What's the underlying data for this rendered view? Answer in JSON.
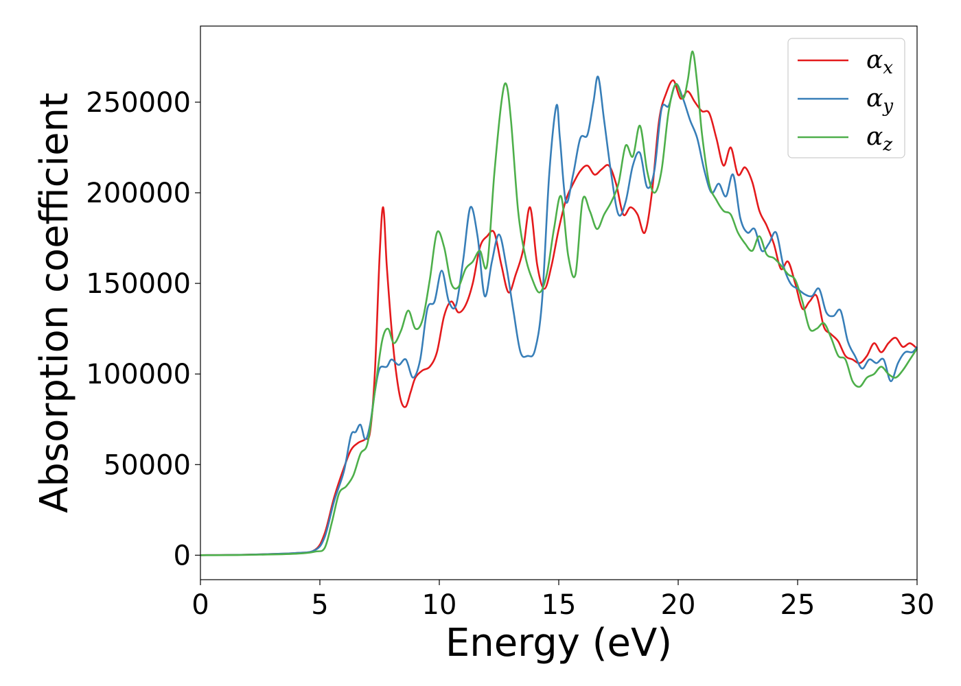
{
  "chart_data": {
    "type": "line",
    "xlabel": "Energy (eV)",
    "ylabel": "Absorption coefficient",
    "xlim": [
      0,
      30
    ],
    "ylim": [
      -13500,
      292000
    ],
    "xticks": [
      0,
      5,
      10,
      15,
      20,
      25,
      30
    ],
    "yticks": [
      0,
      50000,
      100000,
      150000,
      200000,
      250000
    ],
    "grid": false,
    "legend": "top-right",
    "series": [
      {
        "name": "α",
        "subscript": "x",
        "color": "#e41a1c",
        "x": [
          0,
          2,
          4,
          4.8,
          5.2,
          5.6,
          6,
          6.3,
          6.6,
          6.9,
          7.1,
          7.3,
          7.5,
          7.65,
          7.8,
          8,
          8.2,
          8.4,
          8.6,
          8.8,
          9,
          9.3,
          9.6,
          9.9,
          10.2,
          10.5,
          10.8,
          11.1,
          11.4,
          11.7,
          12,
          12.3,
          12.6,
          12.9,
          13.2,
          13.5,
          13.8,
          14.1,
          14.4,
          14.7,
          15,
          15.3,
          15.6,
          15.9,
          16.2,
          16.5,
          16.8,
          17.1,
          17.4,
          17.7,
          18,
          18.3,
          18.6,
          18.9,
          19.2,
          19.5,
          19.8,
          20.1,
          20.4,
          20.7,
          21,
          21.3,
          21.6,
          21.9,
          22.2,
          22.5,
          22.8,
          23.1,
          23.4,
          23.7,
          24,
          24.3,
          24.6,
          24.9,
          25.2,
          25.5,
          25.8,
          26.1,
          26.4,
          26.7,
          27,
          27.3,
          27.6,
          27.9,
          28.2,
          28.5,
          28.8,
          29.1,
          29.4,
          29.7,
          30
        ],
        "values": [
          0,
          300,
          1200,
          3000,
          12000,
          32000,
          48000,
          58000,
          62000,
          64000,
          68000,
          100000,
          165000,
          192000,
          160000,
          125000,
          100000,
          85000,
          82000,
          90000,
          98000,
          102000,
          104000,
          112000,
          132000,
          140000,
          134000,
          138000,
          150000,
          170000,
          176000,
          178000,
          160000,
          145000,
          155000,
          168000,
          192000,
          160000,
          147000,
          160000,
          180000,
          196000,
          205000,
          212000,
          215000,
          210000,
          213000,
          215000,
          205000,
          188000,
          192000,
          188000,
          178000,
          200000,
          240000,
          255000,
          262000,
          252000,
          256000,
          250000,
          245000,
          244000,
          230000,
          215000,
          225000,
          210000,
          214000,
          206000,
          190000,
          182000,
          172000,
          158000,
          162000,
          150000,
          136000,
          140000,
          143000,
          126000,
          122000,
          118000,
          110000,
          108000,
          106000,
          110000,
          117000,
          112000,
          117000,
          120000,
          115000,
          117000,
          114000
        ]
      },
      {
        "name": "α",
        "subscript": "y",
        "color": "#377eb8",
        "x": [
          0,
          2,
          4,
          4.8,
          5.2,
          5.6,
          6,
          6.3,
          6.5,
          6.7,
          6.9,
          7.1,
          7.3,
          7.5,
          7.8,
          8,
          8.3,
          8.6,
          8.9,
          9.2,
          9.5,
          9.8,
          10.1,
          10.4,
          10.7,
          11,
          11.3,
          11.6,
          11.9,
          12.2,
          12.5,
          12.8,
          13.1,
          13.4,
          13.7,
          14,
          14.3,
          14.6,
          14.9,
          15.05,
          15.3,
          15.6,
          15.9,
          16.2,
          16.45,
          16.65,
          16.9,
          17.2,
          17.5,
          17.8,
          18.1,
          18.4,
          18.7,
          19,
          19.3,
          19.6,
          19.9,
          20.2,
          20.5,
          20.8,
          21.1,
          21.4,
          21.7,
          22,
          22.3,
          22.6,
          22.9,
          23.2,
          23.5,
          23.8,
          24.1,
          24.4,
          24.7,
          25,
          25.3,
          25.6,
          25.9,
          26.2,
          26.5,
          26.8,
          27.1,
          27.4,
          27.7,
          28,
          28.3,
          28.6,
          28.9,
          29.2,
          29.5,
          29.8,
          30
        ],
        "values": [
          0,
          300,
          1200,
          2800,
          10000,
          30000,
          46000,
          66000,
          68000,
          72000,
          64000,
          72000,
          90000,
          103000,
          104000,
          108000,
          105000,
          108000,
          98000,
          108000,
          136000,
          140000,
          157000,
          140000,
          138000,
          163000,
          192000,
          176000,
          143000,
          162000,
          177000,
          160000,
          135000,
          112000,
          110000,
          113000,
          140000,
          210000,
          248000,
          230000,
          195000,
          210000,
          230000,
          232000,
          250000,
          264000,
          240000,
          210000,
          188000,
          195000,
          215000,
          222000,
          203000,
          212000,
          246000,
          248000,
          260000,
          252000,
          240000,
          230000,
          212000,
          200000,
          205000,
          198000,
          210000,
          186000,
          178000,
          180000,
          168000,
          172000,
          178000,
          160000,
          150000,
          147000,
          144000,
          143000,
          147000,
          134000,
          132000,
          135000,
          118000,
          110000,
          103000,
          108000,
          106000,
          108000,
          96000,
          106000,
          112000,
          112000,
          115000
        ]
      },
      {
        "name": "α",
        "subscript": "z",
        "color": "#4daf4a",
        "x": [
          0,
          2,
          4,
          4.8,
          5.2,
          5.5,
          5.8,
          6.1,
          6.4,
          6.7,
          7,
          7.3,
          7.6,
          7.85,
          8.1,
          8.4,
          8.7,
          9,
          9.3,
          9.6,
          9.9,
          10.2,
          10.5,
          10.8,
          11.1,
          11.4,
          11.7,
          12,
          12.3,
          12.6,
          12.8,
          13,
          13.3,
          13.6,
          13.9,
          14.2,
          14.5,
          14.8,
          15.1,
          15.4,
          15.7,
          16,
          16.3,
          16.6,
          16.9,
          17.2,
          17.5,
          17.8,
          18.1,
          18.4,
          18.7,
          19,
          19.3,
          19.6,
          19.9,
          20.2,
          20.4,
          20.6,
          20.8,
          21,
          21.3,
          21.6,
          21.9,
          22.2,
          22.5,
          22.8,
          23.1,
          23.4,
          23.7,
          24,
          24.3,
          24.6,
          24.9,
          25.2,
          25.5,
          25.8,
          26.1,
          26.4,
          26.7,
          27,
          27.3,
          27.6,
          27.9,
          28.2,
          28.5,
          28.8,
          29.1,
          29.4,
          29.7,
          30
        ],
        "values": [
          0,
          200,
          800,
          2000,
          4000,
          18000,
          34000,
          38000,
          44000,
          56000,
          62000,
          90000,
          118000,
          125000,
          117000,
          124000,
          135000,
          125000,
          130000,
          152000,
          178000,
          170000,
          150000,
          148000,
          158000,
          162000,
          168000,
          160000,
          210000,
          250000,
          260000,
          240000,
          190000,
          165000,
          152000,
          145000,
          155000,
          180000,
          198000,
          165000,
          155000,
          196000,
          190000,
          180000,
          188000,
          195000,
          205000,
          226000,
          220000,
          237000,
          212000,
          200000,
          212000,
          245000,
          260000,
          252000,
          262000,
          278000,
          260000,
          232000,
          205000,
          196000,
          190000,
          188000,
          178000,
          172000,
          168000,
          176000,
          166000,
          164000,
          160000,
          155000,
          152000,
          140000,
          125000,
          125000,
          128000,
          120000,
          110000,
          108000,
          96000,
          93000,
          98000,
          100000,
          104000,
          100000,
          98000,
          102000,
          108000,
          114000
        ]
      }
    ]
  }
}
